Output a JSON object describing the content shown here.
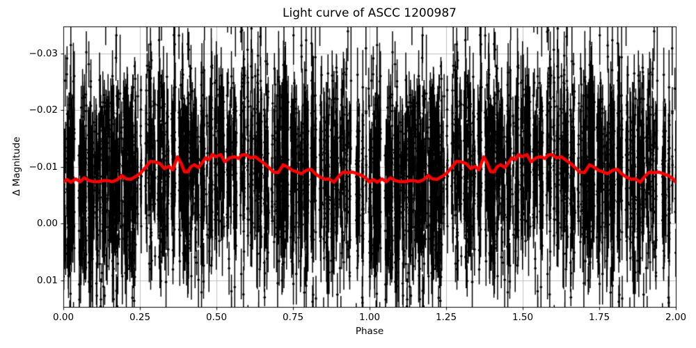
{
  "chart_data": {
    "type": "scatter",
    "title": "Light curve of ASCC 1200987",
    "xlabel": "Phase",
    "ylabel": "Δ Magnitude",
    "xlim": [
      0.0,
      2.0
    ],
    "ylim_top": -0.0348,
    "ylim_bottom": 0.0147,
    "y_axis_inverted": true,
    "grid": true,
    "grid_color": "#b0b0b0",
    "background_color": "#ffffff",
    "spine_color": "#000000",
    "x_ticks": {
      "values": [
        0.0,
        0.25,
        0.5,
        0.75,
        1.0,
        1.25,
        1.5,
        1.75,
        2.0
      ],
      "labels": [
        "0.00",
        "0.25",
        "0.50",
        "0.75",
        "1.00",
        "1.25",
        "1.50",
        "1.75",
        "2.00"
      ]
    },
    "y_ticks": {
      "values": [
        -0.03,
        -0.02,
        -0.01,
        0.0,
        0.01
      ],
      "labels": [
        "−0.03",
        "−0.02",
        "−0.01",
        "0.00",
        "0.01"
      ]
    },
    "series": [
      {
        "name": "observations",
        "style": "errorbar-scatter",
        "color": "#000000",
        "phase_period": 1.0,
        "plotted_periods": 2,
        "n_strips": 300,
        "pts_per_strip_min": 6,
        "pts_per_strip_max": 15,
        "phase_jitter": 0.004,
        "sigma": 0.0075,
        "outlier_fraction": 0.15,
        "outlier_sigma": 0.014,
        "err_half_min": 0.0015,
        "err_half_max": 0.0055,
        "long_err_fraction": 0.12,
        "long_err_extra": 0.006,
        "seed": 42
      },
      {
        "name": "binned-mean-curve",
        "style": "line",
        "color": "#ff0000",
        "linewidth": 4.5,
        "phase_period": 1.0,
        "plotted_periods": 2,
        "phase": [
          0.0,
          0.012,
          0.025,
          0.04,
          0.055,
          0.068,
          0.084,
          0.1,
          0.115,
          0.13,
          0.145,
          0.159,
          0.175,
          0.191,
          0.205,
          0.22,
          0.236,
          0.252,
          0.268,
          0.284,
          0.3,
          0.316,
          0.33,
          0.345,
          0.357,
          0.373,
          0.385,
          0.395,
          0.405,
          0.418,
          0.428,
          0.441,
          0.452,
          0.464,
          0.476,
          0.486,
          0.498,
          0.514,
          0.527,
          0.543,
          0.559,
          0.573,
          0.582,
          0.595,
          0.611,
          0.627,
          0.641,
          0.657,
          0.673,
          0.686,
          0.702,
          0.718,
          0.732,
          0.748,
          0.764,
          0.777,
          0.793,
          0.809,
          0.823,
          0.839,
          0.855,
          0.868,
          0.884,
          0.9,
          0.914,
          0.93,
          0.945,
          0.959,
          0.975,
          0.991
        ],
        "dmag": [
          -0.0073,
          -0.0078,
          -0.0073,
          -0.0079,
          -0.0074,
          -0.0081,
          -0.0076,
          -0.0074,
          -0.0074,
          -0.0076,
          -0.0076,
          -0.0074,
          -0.0077,
          -0.0085,
          -0.0079,
          -0.0078,
          -0.0083,
          -0.0089,
          -0.0099,
          -0.011,
          -0.0109,
          -0.0106,
          -0.0097,
          -0.0101,
          -0.0095,
          -0.0118,
          -0.0106,
          -0.0092,
          -0.0091,
          -0.0101,
          -0.0104,
          -0.0099,
          -0.0106,
          -0.0116,
          -0.0113,
          -0.0122,
          -0.0118,
          -0.0122,
          -0.0109,
          -0.0116,
          -0.0118,
          -0.0115,
          -0.0121,
          -0.0122,
          -0.0116,
          -0.0118,
          -0.0112,
          -0.0106,
          -0.0098,
          -0.0091,
          -0.009,
          -0.0104,
          -0.01,
          -0.0094,
          -0.0091,
          -0.0088,
          -0.0094,
          -0.0096,
          -0.0088,
          -0.0082,
          -0.0078,
          -0.0079,
          -0.0073,
          -0.0084,
          -0.0091,
          -0.009,
          -0.0091,
          -0.0088,
          -0.0085,
          -0.0079
        ]
      }
    ]
  }
}
